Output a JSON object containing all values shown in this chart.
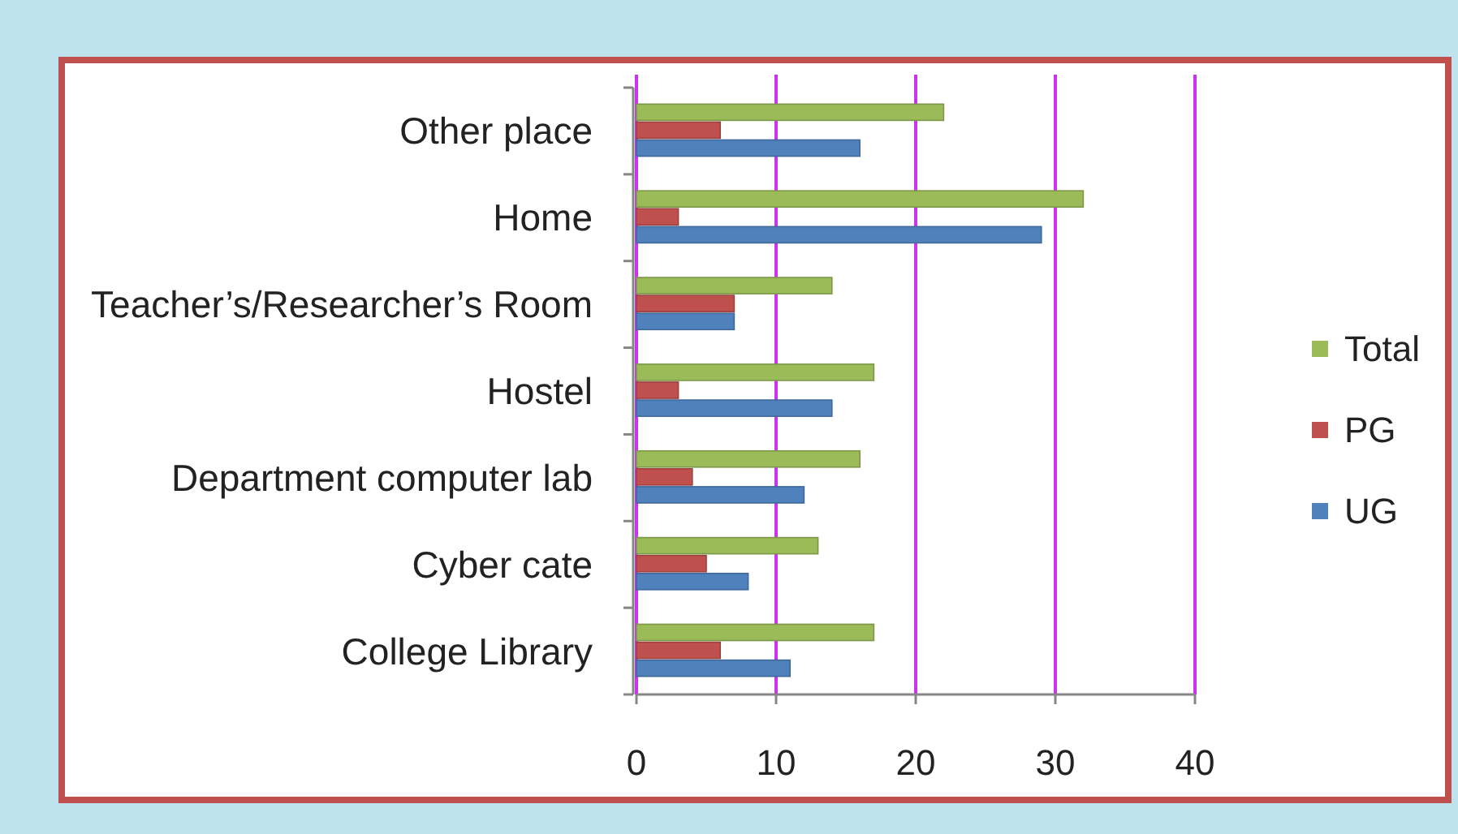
{
  "chart_data": {
    "type": "bar",
    "orientation": "horizontal",
    "categories": [
      "Other place",
      "Home",
      "Teacher’s/Researcher’s Room",
      "Hostel",
      "Department computer lab",
      "Cyber cate",
      "College Library"
    ],
    "series": [
      {
        "name": "UG",
        "color": "#4f81bd",
        "values": [
          16,
          29,
          7,
          14,
          12,
          8,
          11
        ]
      },
      {
        "name": "PG",
        "color": "#c0504d",
        "values": [
          6,
          3,
          7,
          3,
          4,
          5,
          6
        ]
      },
      {
        "name": "Total",
        "color": "#9bbb59",
        "values": [
          22,
          32,
          14,
          17,
          16,
          13,
          17
        ]
      }
    ],
    "xlim": [
      0,
      40
    ],
    "xticks": [
      0,
      10,
      20,
      30,
      40
    ],
    "grid": "x",
    "legend": "right"
  }
}
